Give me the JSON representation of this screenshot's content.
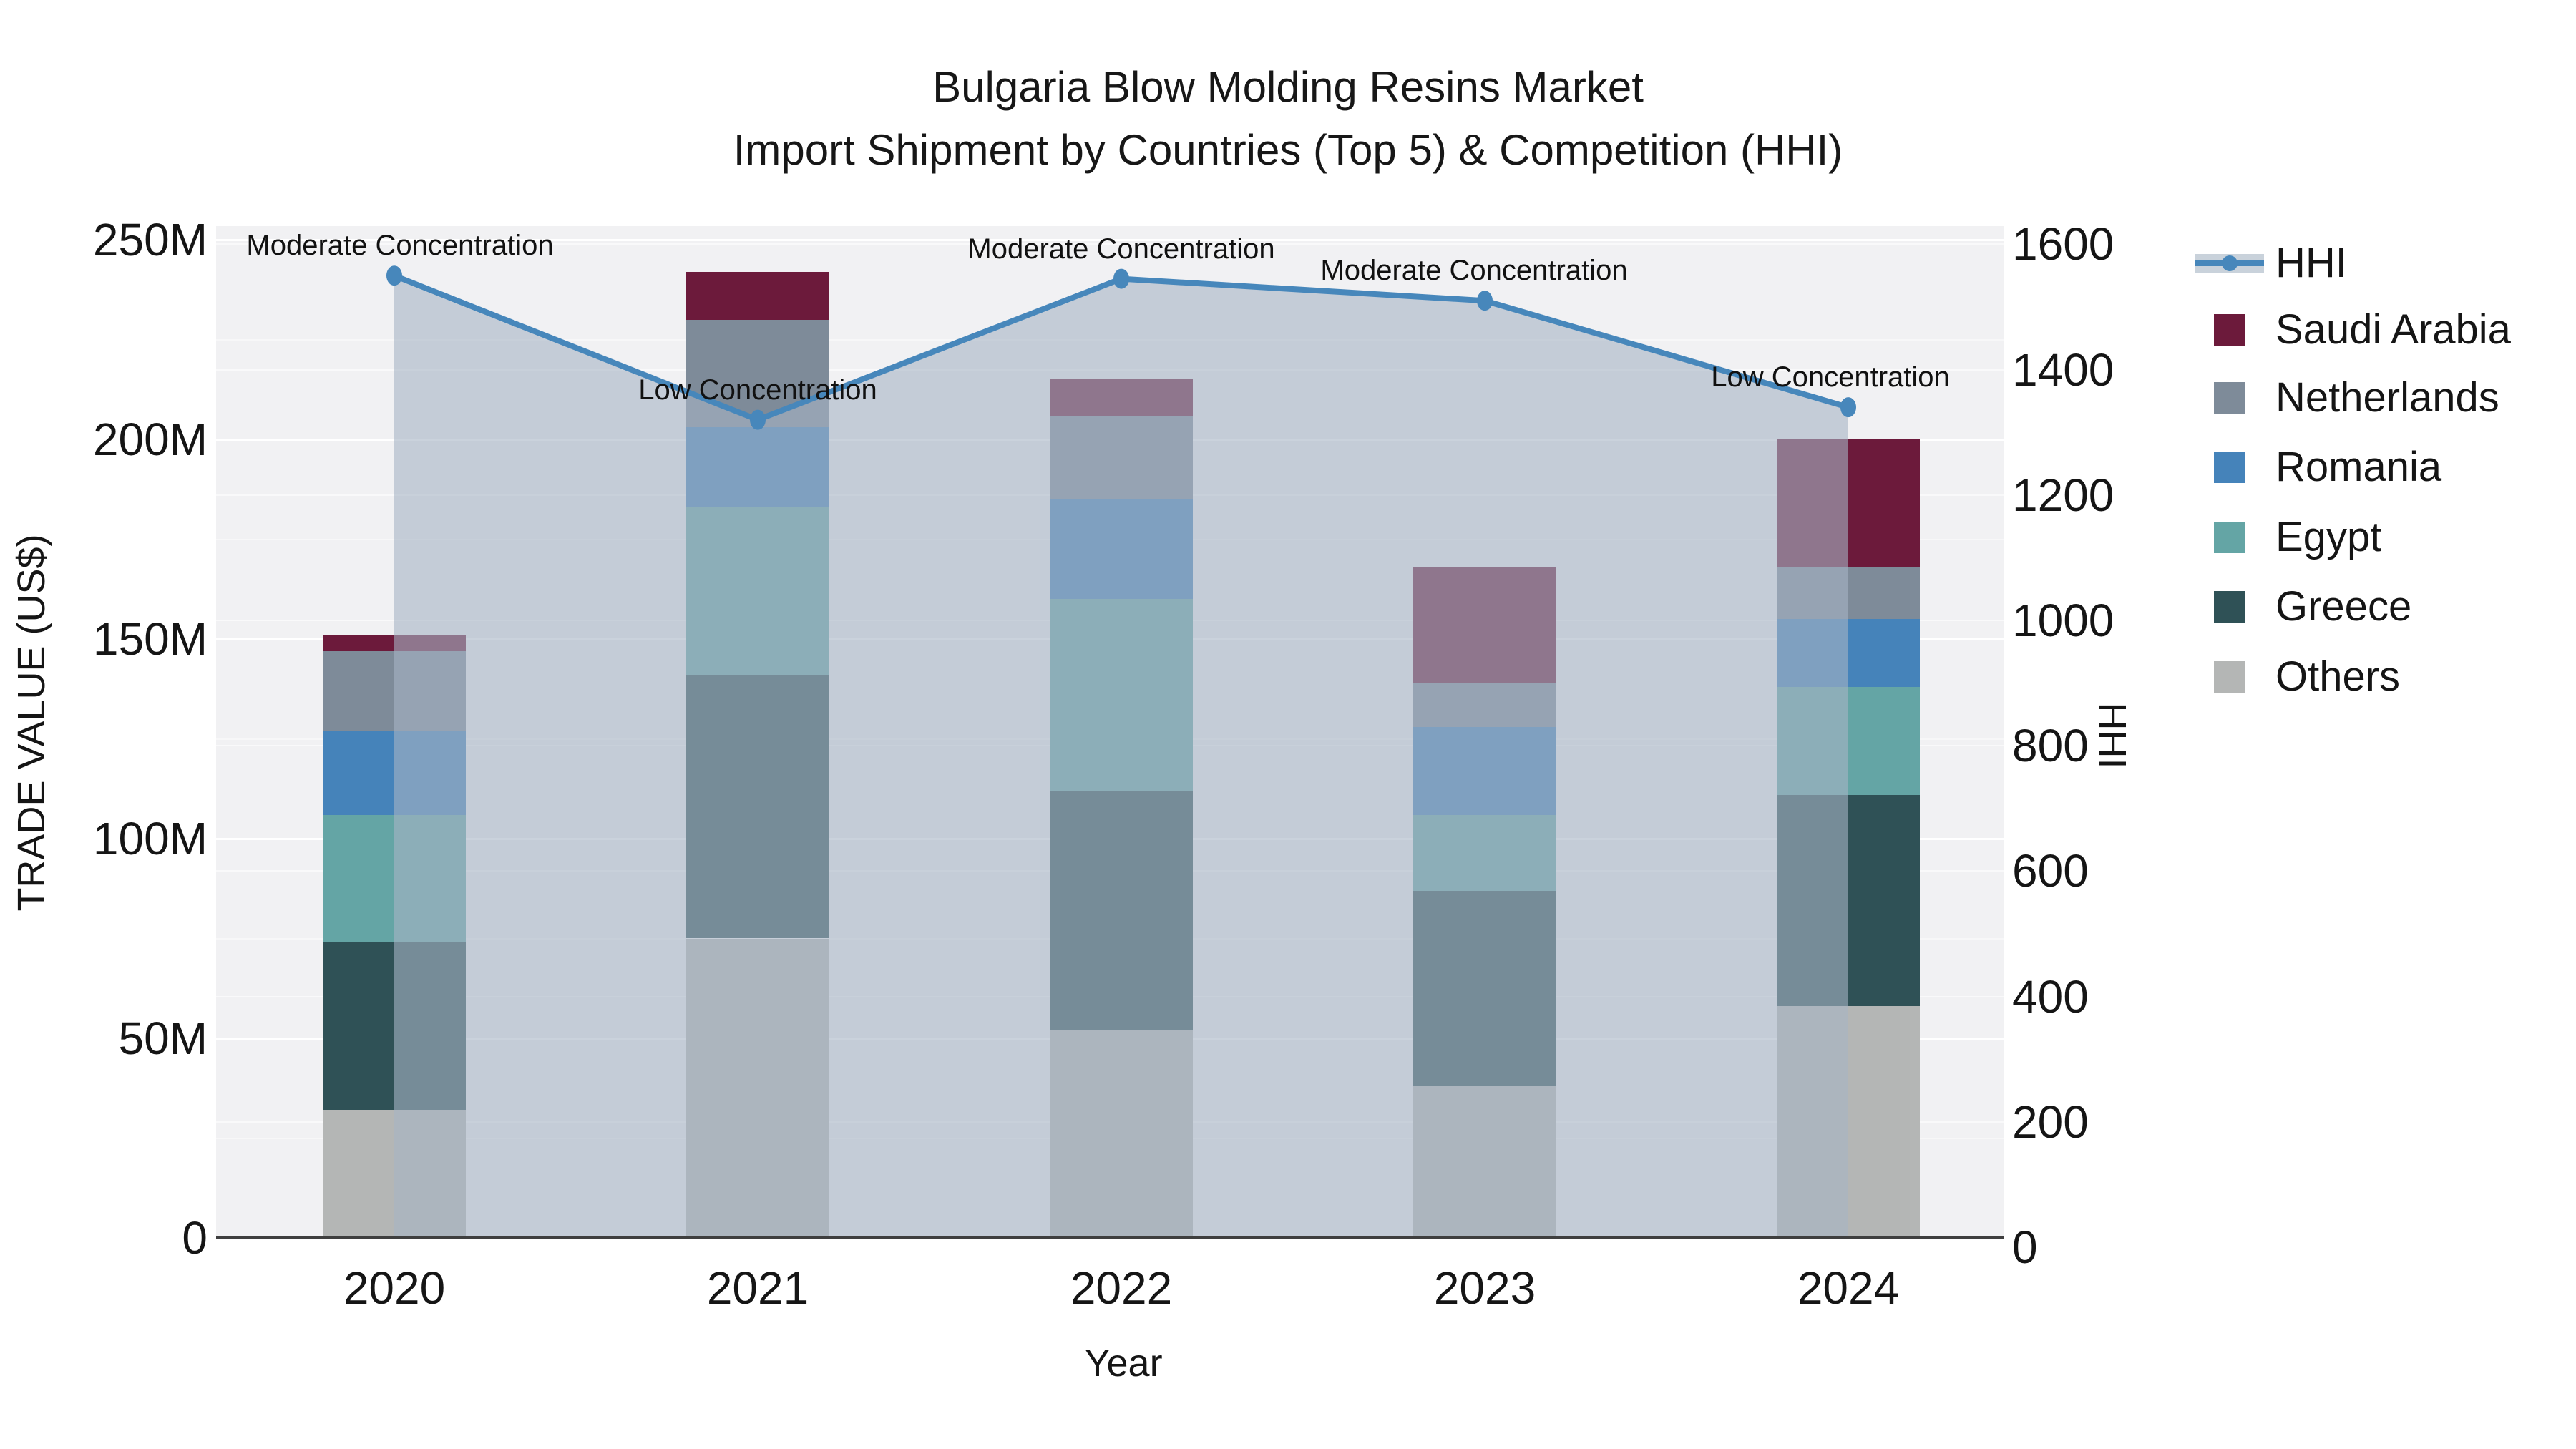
{
  "title": {
    "line1": "Bulgaria Blow Molding Resins Market",
    "line2": "Import Shipment by Countries (Top 5) & Competition (HHI)"
  },
  "axes": {
    "x": {
      "label": "Year",
      "ticks": [
        "2020",
        "2021",
        "2022",
        "2023",
        "2024"
      ]
    },
    "y_left": {
      "label": "TRADE VALUE (US$)",
      "ticks": [
        "0",
        "50M",
        "100M",
        "150M",
        "200M",
        "250M"
      ],
      "tick_values_m": [
        0,
        50,
        100,
        150,
        200,
        250
      ],
      "max_m": 250
    },
    "y_right": {
      "label": "HHI",
      "ticks": [
        "0",
        "200",
        "400",
        "600",
        "800",
        "1000",
        "1200",
        "1400",
        "1600"
      ],
      "tick_values": [
        0,
        200,
        400,
        600,
        800,
        1000,
        1200,
        1400,
        1600
      ],
      "max": 1600
    }
  },
  "legend": {
    "items": [
      {
        "label": "HHI",
        "type": "line",
        "color": "#4787bb",
        "band_color": "#c9d2db"
      },
      {
        "label": "Saudi Arabia",
        "type": "swatch",
        "color": "#6c1a3b"
      },
      {
        "label": "Netherlands",
        "type": "swatch",
        "color": "#7e8b99"
      },
      {
        "label": "Romania",
        "type": "swatch",
        "color": "#4583ba"
      },
      {
        "label": "Egypt",
        "type": "swatch",
        "color": "#64a5a5"
      },
      {
        "label": "Greece",
        "type": "swatch",
        "color": "#2f5156"
      },
      {
        "label": "Others",
        "type": "swatch",
        "color": "#b4b6b5"
      }
    ]
  },
  "annotations": [
    {
      "text": "Moderate Concentration",
      "year": "2020",
      "dx": 8
    },
    {
      "text": "Low Concentration",
      "year": "2021",
      "dx": 0
    },
    {
      "text": "Moderate Concentration",
      "year": "2022",
      "dx": 0
    },
    {
      "text": "Moderate Concentration",
      "year": "2023",
      "dx": -15
    },
    {
      "text": "Low Concentration",
      "year": "2024",
      "dx": -25
    }
  ],
  "chart_data": {
    "type": "bar",
    "stacked": true,
    "title": "Bulgaria Blow Molding Resins Market — Import Shipment by Countries (Top 5) & Competition (HHI)",
    "xlabel": "Year",
    "ylabel_left": "TRADE VALUE (US$)",
    "ylabel_right": "HHI",
    "ylim_left_millions": [
      0,
      250
    ],
    "ylim_right": [
      0,
      1600
    ],
    "grid": true,
    "legend_position": "right",
    "categories": [
      "2020",
      "2021",
      "2022",
      "2023",
      "2024"
    ],
    "values_unit": "million US$",
    "series": [
      {
        "name": "Others",
        "color": "#b4b6b5",
        "values_m": [
          32,
          75,
          52,
          38,
          58
        ]
      },
      {
        "name": "Greece",
        "color": "#2f5156",
        "values_m": [
          42,
          66,
          60,
          49,
          53
        ]
      },
      {
        "name": "Egypt",
        "color": "#64a5a5",
        "values_m": [
          32,
          42,
          48,
          19,
          27
        ]
      },
      {
        "name": "Romania",
        "color": "#4583ba",
        "values_m": [
          21,
          20,
          25,
          22,
          17
        ]
      },
      {
        "name": "Netherlands",
        "color": "#7e8b99",
        "values_m": [
          20,
          27,
          21,
          11,
          13
        ]
      },
      {
        "name": "Saudi Arabia",
        "color": "#6c1a3b",
        "values_m": [
          4,
          12,
          9,
          29,
          32
        ]
      }
    ],
    "bar_totals_m": [
      151,
      242,
      215,
      168,
      200
    ],
    "line_series": {
      "name": "HHI",
      "axis": "right",
      "color": "#4787bb",
      "area_fill": "rgba(167,180,196,0.6)",
      "values": [
        1550,
        1320,
        1545,
        1510,
        1340
      ]
    }
  }
}
